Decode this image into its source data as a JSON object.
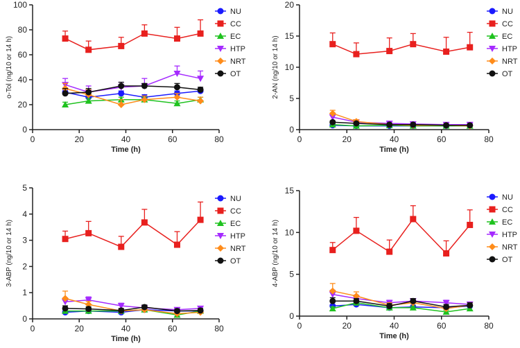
{
  "series_colors": {
    "NU": "#1a1aff",
    "CC": "#e8201e",
    "EC": "#1fc21f",
    "HTP": "#a52aff",
    "NRT": "#ff8c1a",
    "OT": "#111111"
  },
  "chart_data": [
    {
      "type": "line",
      "title": "",
      "xlabel": "Time (h)",
      "ylabel": "o-Tol (ng/10 or 14 h)",
      "xlim": [
        0,
        80
      ],
      "ylim": [
        0,
        100
      ],
      "xticks": [
        0,
        20,
        40,
        60,
        80
      ],
      "yticks": [
        0,
        20,
        40,
        60,
        80,
        100
      ],
      "legend": [
        "NU",
        "CC",
        "EC",
        "HTP",
        "NRT",
        "OT"
      ],
      "x": [
        14,
        24,
        38,
        48,
        62,
        72
      ],
      "series": [
        {
          "name": "NU",
          "values": [
            30,
            26,
            29,
            26,
            29,
            31
          ],
          "errors": [
            2,
            2,
            2,
            2,
            2,
            2
          ]
        },
        {
          "name": "CC",
          "values": [
            73,
            64,
            67,
            77,
            73,
            77
          ],
          "errors": [
            6,
            7,
            7,
            7,
            9,
            11
          ]
        },
        {
          "name": "EC",
          "values": [
            20,
            23,
            24,
            24,
            21,
            24
          ],
          "errors": [
            2,
            2,
            2,
            2,
            2,
            2
          ]
        },
        {
          "name": "HTP",
          "values": [
            36,
            30,
            34,
            35,
            45,
            41
          ],
          "errors": [
            5,
            5,
            4,
            6,
            6,
            6
          ]
        },
        {
          "name": "NRT",
          "values": [
            33,
            28,
            20,
            24,
            26,
            23
          ],
          "errors": [
            4,
            4,
            4,
            3,
            3,
            3
          ]
        },
        {
          "name": "OT",
          "values": [
            29,
            30,
            35,
            35,
            34,
            32
          ],
          "errors": [
            4,
            3,
            3,
            2,
            3,
            2
          ]
        }
      ]
    },
    {
      "type": "line",
      "title": "",
      "xlabel": "Time (h)",
      "ylabel": "2-AN (ng/10 or 14 h)",
      "xlim": [
        0,
        80
      ],
      "ylim": [
        0,
        20
      ],
      "xticks": [
        0,
        20,
        40,
        60,
        80
      ],
      "yticks": [
        0,
        5,
        10,
        15,
        20
      ],
      "legend": [
        "NU",
        "CC",
        "EC",
        "HTP",
        "NRT",
        "OT"
      ],
      "x": [
        14,
        24,
        38,
        48,
        62,
        72
      ],
      "series": [
        {
          "name": "NU",
          "values": [
            0.7,
            0.6,
            0.6,
            0.6,
            0.6,
            0.7
          ],
          "errors": [
            0.1,
            0.1,
            0.1,
            0.1,
            0.1,
            0.1
          ]
        },
        {
          "name": "CC",
          "values": [
            13.7,
            12.1,
            12.6,
            13.7,
            12.5,
            13.2
          ],
          "errors": [
            1.8,
            1.8,
            2.1,
            1.7,
            2.3,
            2.4
          ]
        },
        {
          "name": "EC",
          "values": [
            0.8,
            0.6,
            0.7,
            0.6,
            0.6,
            0.6
          ],
          "errors": [
            0.1,
            0.1,
            0.1,
            0.1,
            0.1,
            0.1
          ]
        },
        {
          "name": "HTP",
          "values": [
            2.0,
            1.2,
            1.0,
            0.9,
            0.8,
            0.8
          ],
          "errors": [
            0.4,
            0.3,
            0.2,
            0.2,
            0.2,
            0.2
          ]
        },
        {
          "name": "NRT",
          "values": [
            2.6,
            1.3,
            0.8,
            0.7,
            0.7,
            0.6
          ],
          "errors": [
            0.5,
            0.3,
            0.2,
            0.2,
            0.2,
            0.2
          ]
        },
        {
          "name": "OT",
          "values": [
            1.2,
            1.0,
            0.8,
            0.8,
            0.7,
            0.7
          ],
          "errors": [
            0.2,
            0.2,
            0.1,
            0.1,
            0.1,
            0.1
          ]
        }
      ]
    },
    {
      "type": "line",
      "title": "",
      "xlabel": "Time (h)",
      "ylabel": "3-ABP (ng/10 or 14 h)",
      "xlim": [
        0,
        80
      ],
      "ylim": [
        0,
        5
      ],
      "xticks": [
        0,
        20,
        40,
        60,
        80
      ],
      "yticks": [
        0,
        1,
        2,
        3,
        4,
        5
      ],
      "legend": [
        "NU",
        "CC",
        "EC",
        "HTP",
        "NRT",
        "OT"
      ],
      "x": [
        14,
        24,
        38,
        48,
        62,
        72
      ],
      "series": [
        {
          "name": "NU",
          "values": [
            0.25,
            0.3,
            0.25,
            0.35,
            0.3,
            0.3
          ],
          "errors": [
            0.05,
            0.05,
            0.05,
            0.05,
            0.05,
            0.05
          ]
        },
        {
          "name": "CC",
          "values": [
            3.05,
            3.27,
            2.75,
            3.68,
            2.83,
            3.78
          ],
          "errors": [
            0.3,
            0.45,
            0.4,
            0.5,
            0.5,
            0.68
          ]
        },
        {
          "name": "EC",
          "values": [
            0.3,
            0.3,
            0.3,
            0.35,
            0.15,
            0.3
          ],
          "errors": [
            0.05,
            0.05,
            0.05,
            0.05,
            0.05,
            0.05
          ]
        },
        {
          "name": "HTP",
          "values": [
            0.65,
            0.72,
            0.5,
            0.42,
            0.35,
            0.4
          ],
          "errors": [
            0.15,
            0.12,
            0.1,
            0.08,
            0.08,
            0.08
          ]
        },
        {
          "name": "NRT",
          "values": [
            0.78,
            0.55,
            0.3,
            0.35,
            0.2,
            0.25
          ],
          "errors": [
            0.28,
            0.12,
            0.08,
            0.08,
            0.05,
            0.05
          ]
        },
        {
          "name": "OT",
          "values": [
            0.4,
            0.38,
            0.32,
            0.45,
            0.3,
            0.32
          ],
          "errors": [
            0.1,
            0.08,
            0.08,
            0.08,
            0.08,
            0.08
          ]
        }
      ]
    },
    {
      "type": "line",
      "title": "",
      "xlabel": "Time (h)",
      "ylabel": "4-ABP (ng/10 or 14 h)",
      "xlim": [
        0,
        80
      ],
      "ylim": [
        0,
        15
      ],
      "xticks": [
        0,
        20,
        40,
        60,
        80
      ],
      "yticks": [
        0,
        5,
        10,
        15
      ],
      "legend": [
        "NU",
        "CC",
        "EC",
        "HTP",
        "NRT",
        "OT"
      ],
      "x": [
        14,
        24,
        38,
        48,
        62,
        72
      ],
      "series": [
        {
          "name": "NU",
          "values": [
            1.2,
            1.4,
            1.0,
            1.1,
            1.0,
            1.2
          ],
          "errors": [
            0.2,
            0.2,
            0.2,
            0.2,
            0.2,
            0.2
          ]
        },
        {
          "name": "CC",
          "values": [
            7.9,
            10.2,
            7.7,
            11.6,
            7.5,
            10.9
          ],
          "errors": [
            0.9,
            1.6,
            1.4,
            1.6,
            1.5,
            1.8
          ]
        },
        {
          "name": "EC",
          "values": [
            0.9,
            1.6,
            1.0,
            1.0,
            0.5,
            0.9
          ],
          "errors": [
            0.2,
            0.2,
            0.2,
            0.2,
            0.2,
            0.2
          ]
        },
        {
          "name": "HTP",
          "values": [
            2.6,
            2.1,
            1.6,
            1.8,
            1.6,
            1.4
          ],
          "errors": [
            0.5,
            0.4,
            0.3,
            0.3,
            0.3,
            0.3
          ]
        },
        {
          "name": "NRT",
          "values": [
            3.0,
            2.4,
            1.3,
            1.6,
            0.9,
            1.3
          ],
          "errors": [
            0.9,
            0.5,
            0.3,
            0.3,
            0.3,
            0.3
          ]
        },
        {
          "name": "OT",
          "values": [
            1.8,
            1.8,
            1.2,
            1.8,
            1.1,
            1.3
          ],
          "errors": [
            0.4,
            0.3,
            0.3,
            0.3,
            0.3,
            0.3
          ]
        }
      ]
    }
  ]
}
